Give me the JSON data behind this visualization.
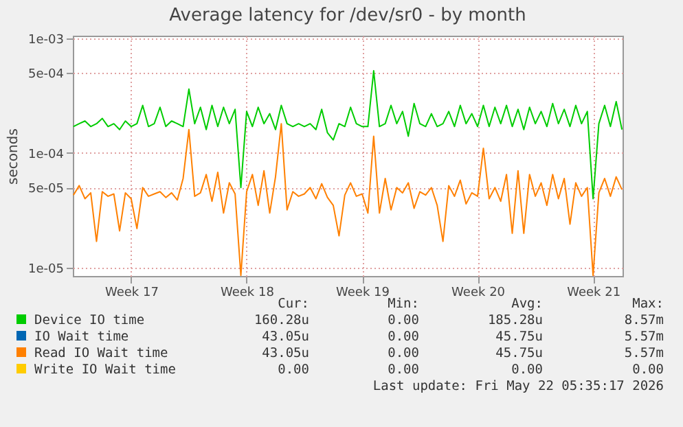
{
  "chart_data": {
    "type": "line",
    "title": "Average latency for /dev/sr0 - by month",
    "ylabel": "seconds",
    "log": true,
    "grid": true,
    "legend": "bottom",
    "categories": [
      null,
      null,
      null,
      null,
      null,
      null,
      null,
      null,
      null,
      null,
      "Week 17",
      null,
      null,
      null,
      null,
      null,
      null,
      null,
      null,
      null,
      null,
      null,
      null,
      null,
      null,
      null,
      null,
      null,
      null,
      null,
      "Week 18",
      null,
      null,
      null,
      null,
      null,
      null,
      null,
      null,
      null,
      null,
      null,
      null,
      null,
      null,
      null,
      null,
      null,
      null,
      null,
      "Week 19",
      null,
      null,
      null,
      null,
      null,
      null,
      null,
      null,
      null,
      null,
      null,
      null,
      null,
      null,
      null,
      null,
      null,
      null,
      null,
      "Week 20",
      null,
      null,
      null,
      null,
      null,
      null,
      null,
      null,
      null,
      null,
      null,
      null,
      null,
      null,
      null,
      null,
      null,
      null,
      null,
      "Week 21",
      null,
      null,
      null,
      null,
      null
    ],
    "ylim": [
      8.5e-06,
      0.00105
    ],
    "yticks": [
      {
        "value": 1e-05,
        "label": "1e-05"
      },
      {
        "value": 5e-05,
        "label": "5e-05"
      },
      {
        "value": 0.0001,
        "label": "1e-04"
      },
      {
        "value": 0.0005,
        "label": "5e-04"
      },
      {
        "value": 0.001,
        "label": "1e-03"
      }
    ],
    "series": [
      {
        "name": "Device IO time",
        "color": "#00cc00",
        "values": [
          0.00017,
          0.00018,
          0.00019,
          0.00017,
          0.00018,
          0.0002,
          0.00017,
          0.00018,
          0.00016,
          0.00019,
          0.00017,
          0.00018,
          0.00026,
          0.00017,
          0.00018,
          0.00025,
          0.00017,
          0.00019,
          0.00018,
          0.00017,
          0.00036,
          0.00018,
          0.00025,
          0.00016,
          0.00026,
          0.00017,
          0.00025,
          0.00018,
          0.00024,
          5e-05,
          0.00023,
          0.00017,
          0.00025,
          0.00018,
          0.00022,
          0.00016,
          0.00026,
          0.00018,
          0.00017,
          0.00018,
          0.00017,
          0.00018,
          0.00016,
          0.00024,
          0.00015,
          0.00013,
          0.00018,
          0.00017,
          0.00025,
          0.00018,
          0.00017,
          0.00017,
          0.00052,
          0.00017,
          0.00018,
          0.00026,
          0.00018,
          0.00023,
          0.00014,
          0.00027,
          0.00018,
          0.00017,
          0.00022,
          0.00017,
          0.00018,
          0.00023,
          0.00017,
          0.00026,
          0.00018,
          0.00022,
          0.00017,
          0.00026,
          0.00017,
          0.00025,
          0.00018,
          0.00026,
          0.00017,
          0.00024,
          0.00016,
          0.00025,
          0.00018,
          0.00023,
          0.00017,
          0.00027,
          0.00018,
          0.00024,
          0.00017,
          0.00026,
          0.00018,
          0.00023,
          4e-05,
          0.00018,
          0.00026,
          0.00017,
          0.00028,
          0.00016
        ]
      },
      {
        "name": "IO Wait time",
        "color": "#0066b3",
        "values": [
          null,
          null,
          null,
          null,
          null,
          null,
          null,
          null,
          null,
          null,
          null,
          null,
          null,
          null,
          null,
          null,
          null,
          null,
          null,
          null,
          null,
          null,
          null,
          null,
          null,
          null,
          null,
          null,
          null,
          null,
          null,
          null,
          null,
          null,
          null,
          null,
          null,
          null,
          null,
          null,
          null,
          null,
          null,
          null,
          null,
          null,
          null,
          null,
          null,
          null,
          null,
          null,
          null,
          null,
          null,
          null,
          null,
          null,
          null,
          null,
          null,
          null,
          null,
          null,
          null,
          null,
          null,
          null,
          null,
          null,
          null,
          null,
          null,
          null,
          null,
          null,
          null,
          null,
          null,
          null,
          null,
          null,
          null,
          null,
          null,
          null,
          null,
          null,
          null,
          null,
          null,
          null,
          null,
          null,
          null,
          null
        ]
      },
      {
        "name": "Read IO Wait time",
        "color": "#ff8000",
        "values": [
          4.3e-05,
          5.2e-05,
          4e-05,
          4.5e-05,
          1.7e-05,
          4.6e-05,
          4.2e-05,
          4.4e-05,
          2.1e-05,
          4.5e-05,
          4e-05,
          2.2e-05,
          5e-05,
          4.2e-05,
          4.4e-05,
          4.6e-05,
          4.1e-05,
          4.5e-05,
          3.9e-05,
          6e-05,
          0.00016,
          4.2e-05,
          4.5e-05,
          6.5e-05,
          3.8e-05,
          6.8e-05,
          3e-05,
          5.5e-05,
          4.4e-05,
          8.6e-06,
          4.6e-05,
          6.5e-05,
          3.5e-05,
          7e-05,
          3e-05,
          6.2e-05,
          0.00018,
          3.2e-05,
          4.6e-05,
          4.2e-05,
          4.4e-05,
          5e-05,
          4e-05,
          5.4e-05,
          4.1e-05,
          3.5e-05,
          1.9e-05,
          4.3e-05,
          5.5e-05,
          4.2e-05,
          4.4e-05,
          3e-05,
          0.00014,
          3e-05,
          6e-05,
          3.2e-05,
          5e-05,
          4.5e-05,
          5.5e-05,
          3.3e-05,
          4.6e-05,
          4.3e-05,
          5e-05,
          3.5e-05,
          1.7e-05,
          5.2e-05,
          4.2e-05,
          5.8e-05,
          3.6e-05,
          4.5e-05,
          4.2e-05,
          0.00011,
          4e-05,
          5e-05,
          3.8e-05,
          6.5e-05,
          2e-05,
          7e-05,
          2e-05,
          6.5e-05,
          4.2e-05,
          5.5e-05,
          3.5e-05,
          6.5e-05,
          4e-05,
          6e-05,
          2.4e-05,
          5.5e-05,
          4.2e-05,
          5e-05,
          8.6e-06,
          4.5e-05,
          6e-05,
          4.2e-05,
          6.2e-05,
          4.8e-05
        ]
      },
      {
        "name": "Write IO Wait time",
        "color": "#ffcc00",
        "values": [
          null,
          null,
          null,
          null,
          null,
          null,
          null,
          null,
          null,
          null,
          null,
          null,
          null,
          null,
          null,
          null,
          null,
          null,
          null,
          null,
          null,
          null,
          null,
          null,
          null,
          null,
          null,
          null,
          null,
          null,
          null,
          null,
          null,
          null,
          null,
          null,
          null,
          null,
          null,
          null,
          null,
          null,
          null,
          null,
          null,
          null,
          null,
          null,
          null,
          null,
          null,
          null,
          null,
          null,
          null,
          null,
          null,
          null,
          null,
          null,
          null,
          null,
          null,
          null,
          null,
          null,
          null,
          null,
          null,
          null,
          null,
          null,
          null,
          null,
          null,
          null,
          null,
          null,
          null,
          null,
          null,
          null,
          null,
          null,
          null,
          null,
          null,
          null,
          null,
          null,
          null,
          null,
          null,
          null,
          null,
          null
        ]
      }
    ],
    "annotations": [
      "Cur:",
      "Min:",
      "Avg:",
      "Max:",
      "160.28u",
      "0.00",
      "185.28u",
      "8.57m",
      "43.05u",
      "0.00",
      "45.75u",
      "5.57m",
      "43.05u",
      "0.00",
      "45.75u",
      "5.57m",
      "0.00",
      "0.00",
      "0.00",
      "0.00",
      "Last update: Fri May 22 05:35:17 2026"
    ]
  }
}
